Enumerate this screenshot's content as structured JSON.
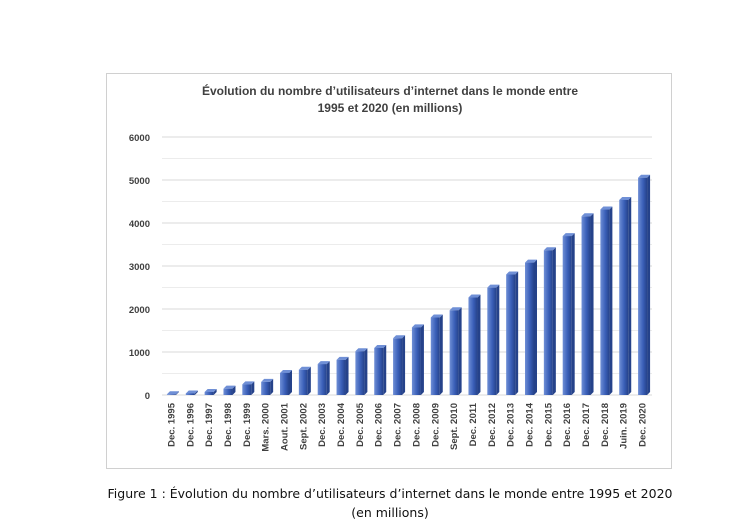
{
  "caption": "Figure 1 : Évolution du nombre d’utilisateurs d’internet dans le monde entre 1995 et 2020 (en millions)",
  "colors": {
    "bar": "#3a5fb8",
    "bar_dark": "#25428a",
    "bar_light": "#6f8fd6",
    "grid": "#d9d9d9",
    "text": "#404040"
  },
  "chart_data": {
    "type": "bar",
    "title_line1": "Évolution du nombre d’utilisateurs d’internet dans le monde entre",
    "title_line2": "1995 et 2020 (en millions)",
    "xlabel": "",
    "ylabel": "",
    "ylim": [
      0,
      6000
    ],
    "yticks": [
      0,
      1000,
      2000,
      3000,
      4000,
      5000,
      6000
    ],
    "grid": true,
    "categories": [
      "Dec. 1995",
      "Dec. 1996",
      "Dec. 1997",
      "Dec. 1998",
      "Dec. 1999",
      "Mars. 2000",
      "Aout. 2001",
      "Sept. 2002",
      "Dec. 2003",
      "Dec. 2004",
      "Dec. 2005",
      "Dec. 2006",
      "Dec. 2007",
      "Dec. 2008",
      "Dec. 2009",
      "Sept. 2010",
      "Dec. 2011",
      "Dec. 2012",
      "Dec. 2013",
      "Dec. 2014",
      "Dec. 2015",
      "Dec. 2016",
      "Dec. 2017",
      "Dec. 2018",
      "Juin. 2019",
      "Dec. 2020"
    ],
    "values": [
      16,
      36,
      70,
      147,
      248,
      304,
      513,
      587,
      719,
      817,
      1018,
      1093,
      1319,
      1574,
      1802,
      1971,
      2267,
      2497,
      2802,
      3079,
      3366,
      3696,
      4156,
      4313,
      4536,
      5053
    ]
  }
}
